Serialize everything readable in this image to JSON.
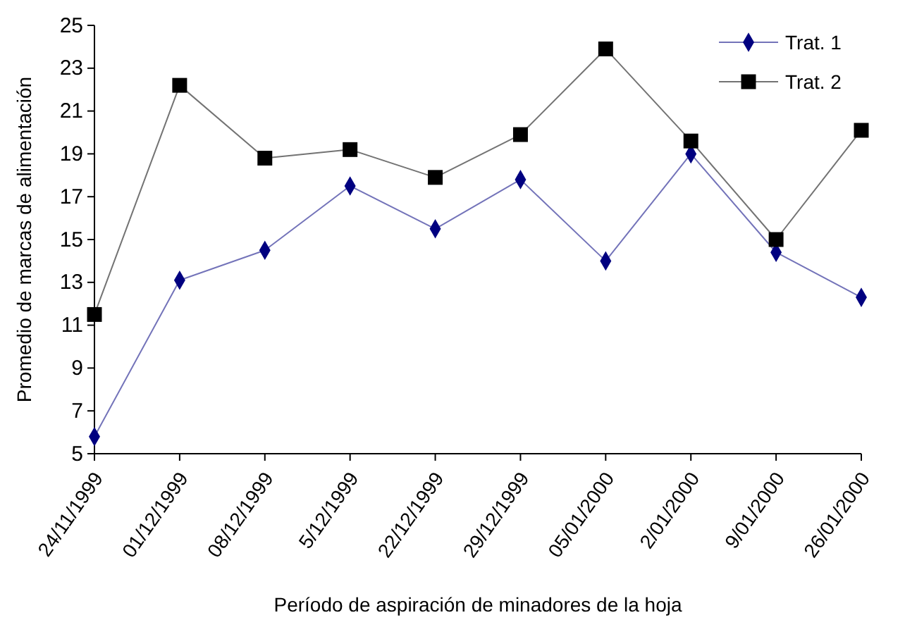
{
  "chart_data": {
    "type": "line",
    "xlabel": "Período de aspiración de minadores de la hoja",
    "ylabel": "Promedio de marcas de alimentación",
    "categories": [
      "24/11/1999",
      "01/12/1999",
      "08/12/1999",
      "5/12/1999",
      "22/12/1999",
      "29/12/1999",
      "05/01/2000",
      "2/01/2000",
      "9/01/2000",
      "26/01/2000"
    ],
    "series": [
      {
        "name": "Trat. 1",
        "color": "#000080",
        "marker": "diamond",
        "values": [
          5.8,
          13.1,
          14.5,
          17.5,
          15.5,
          17.8,
          14.0,
          19.0,
          14.4,
          12.3
        ]
      },
      {
        "name": "Trat. 2",
        "color": "#000000",
        "marker": "square",
        "values": [
          11.5,
          22.2,
          18.8,
          19.2,
          17.9,
          19.9,
          23.9,
          19.6,
          15.0,
          20.1
        ]
      }
    ],
    "ylim": [
      5,
      25
    ],
    "yticks": [
      5,
      7,
      9,
      11,
      13,
      15,
      17,
      19,
      21,
      23,
      25
    ],
    "grid": false,
    "legend": "top right",
    "line_style": "solid"
  }
}
